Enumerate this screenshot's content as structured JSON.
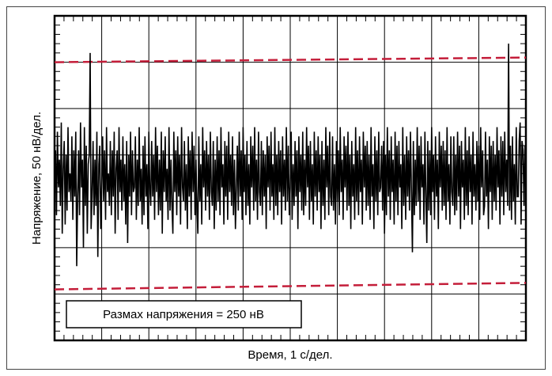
{
  "chart_data": {
    "type": "line",
    "title": "",
    "xlabel": "Время, 1 с/дел.",
    "ylabel": "Напряжение, 50 нВ/дел.",
    "annotation": "Размах напряжения = 250 нВ",
    "x_divisions": 10,
    "y_divisions": 7,
    "xlim": [
      0,
      10
    ],
    "ylim": [
      -175,
      175
    ],
    "grid": true,
    "colors": {
      "trace": "#000000",
      "bounds": "#c41e3a",
      "grid": "#000000"
    },
    "bounds": [
      {
        "name": "upper",
        "x": [
          0,
          10
        ],
        "y": [
          125,
          130
        ]
      },
      {
        "name": "lower",
        "x": [
          0,
          10
        ],
        "y": [
          -120,
          -113
        ]
      }
    ],
    "series": [
      {
        "values": [
          -20,
          30,
          -40,
          50,
          -10,
          20,
          -30,
          60,
          -60,
          10,
          40,
          -50,
          25,
          -35,
          55,
          -15,
          5,
          -25,
          45,
          -45,
          30,
          -20,
          50,
          -95,
          -20,
          30,
          -40,
          60,
          -10,
          20,
          -75,
          55,
          -30,
          35,
          -60,
          15,
          25,
          135,
          -55,
          -20,
          40,
          -40,
          20,
          -30,
          50,
          -85,
          15,
          35,
          -55,
          -10,
          45,
          -25,
          30,
          -45,
          55,
          -15,
          5,
          -30,
          40,
          -40,
          30,
          -20,
          50,
          -60,
          10,
          30,
          -45,
          55,
          -15,
          20,
          -35,
          45,
          -25,
          15,
          -50,
          40,
          -70,
          25,
          -20,
          50,
          -40,
          30,
          -15,
          -10,
          45,
          -45,
          20,
          -30,
          55,
          -25,
          10,
          -50,
          35,
          -40,
          45,
          -20,
          15,
          -55,
          50,
          -10,
          -30,
          40,
          -20,
          25,
          -45,
          55,
          -15,
          35,
          -40,
          20,
          -35,
          50,
          -60,
          30,
          -15,
          45,
          -25,
          10,
          -45,
          55,
          -35,
          20,
          -30,
          -60,
          50,
          -15,
          30,
          -40,
          45,
          -20,
          25,
          -50,
          55,
          -10,
          -25,
          40,
          -35,
          15,
          -55,
          45,
          -20,
          30,
          -45,
          50,
          -15,
          35,
          -40,
          20,
          -30,
          -60,
          45,
          -25,
          15,
          -50,
          55,
          -10,
          30,
          -35,
          40,
          -20,
          25,
          -45,
          50,
          -15,
          -30,
          40,
          -55,
          20,
          -35,
          45,
          -25,
          30,
          -40,
          55,
          -10,
          15,
          -50,
          40,
          -20,
          35,
          -45,
          50,
          -15,
          25,
          -30,
          45,
          -40,
          20,
          -55,
          -10,
          35,
          -35,
          50,
          -20,
          30,
          -45,
          55,
          -15,
          25,
          -40,
          40,
          -30,
          15,
          -50,
          45,
          -10,
          35,
          -35,
          55,
          -25,
          20,
          -45,
          50,
          -15,
          -30,
          40,
          -40,
          30,
          -20,
          25,
          -55,
          45,
          -10,
          35,
          -35,
          50,
          -20,
          15,
          -45,
          55,
          -30,
          25,
          -40,
          40,
          -15,
          30,
          -50,
          45,
          -20,
          20,
          -35,
          55,
          -25,
          35,
          -40,
          -10,
          50,
          -45,
          15,
          -30,
          40,
          -20,
          30,
          -55,
          45,
          -15,
          25,
          -35,
          50,
          -40,
          20,
          -30,
          55,
          -10,
          35,
          -45,
          40,
          -25,
          15,
          -50,
          50,
          -20,
          30,
          -35,
          45,
          -15,
          25,
          -55,
          40,
          -30,
          20,
          -45,
          55,
          -10,
          35,
          -40,
          50,
          -20,
          -30,
          45,
          -35,
          15,
          -50,
          40,
          -25,
          30,
          -40,
          55,
          -15,
          20,
          -45,
          45,
          -10,
          35,
          -35,
          50,
          -30,
          25,
          -55,
          40,
          -20,
          15,
          -45,
          55,
          -25,
          30,
          -40,
          45,
          -15,
          20,
          -50,
          50,
          -10,
          35,
          -35,
          40,
          -30,
          25,
          -45,
          55,
          -20,
          15,
          -55,
          45,
          -25,
          30,
          -40,
          50,
          -15,
          -10,
          35,
          -35,
          40,
          -60,
          25,
          -40,
          55,
          -20,
          30,
          -45,
          45,
          -15,
          20,
          -50,
          50,
          -25,
          35,
          -40,
          40,
          -10,
          15,
          -55,
          55,
          -30,
          25,
          -45,
          45,
          -20,
          30,
          -35,
          50,
          -15,
          -80,
          40,
          -40,
          20,
          -30,
          55,
          -25,
          35,
          -45,
          45,
          -10,
          15,
          -50,
          50,
          -20,
          -70,
          40,
          -35,
          30,
          -40,
          55,
          -15,
          25,
          -45,
          45,
          -20,
          20,
          -55,
          50,
          -10,
          35,
          -35,
          40,
          -30,
          30,
          -45,
          55,
          -25,
          15,
          -50,
          45,
          -15,
          -30,
          45,
          -40,
          25,
          -35,
          50,
          -20,
          35,
          -55,
          40,
          -10,
          20,
          -45,
          55,
          -30,
          30,
          -40,
          45,
          -15,
          25,
          -50,
          50,
          -20,
          15,
          -35,
          40,
          -25,
          35,
          -45,
          55,
          -10,
          30,
          -40,
          -30,
          50,
          -20,
          20,
          -55,
          45,
          -15,
          35,
          -45,
          40,
          -25,
          25,
          -35,
          55,
          -10,
          30,
          -50,
          45,
          -20,
          40,
          -40,
          50,
          -15,
          20,
          -30,
          145,
          -35,
          35,
          -45,
          45,
          -25,
          15,
          -50,
          55,
          -20,
          -20,
          40,
          60,
          -50,
          40,
          30,
          -30,
          35,
          -20
        ]
      }
    ]
  }
}
